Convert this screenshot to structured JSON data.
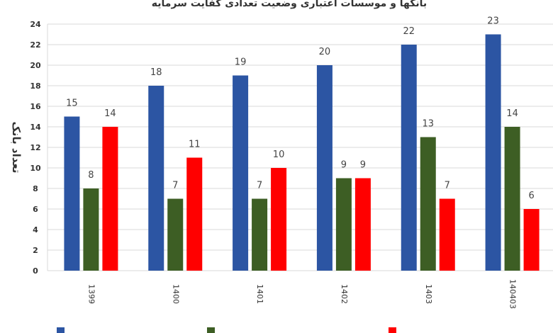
{
  "chart_data": {
    "type": "bar",
    "title": "بانکها و موسسات اعتباری وضعیت تعدادی کفایت سرمایه",
    "ylabel": "تعداد بانک",
    "xlabel": "",
    "categories": [
      "1399",
      "1400",
      "1401",
      "1402",
      "1403",
      "140403"
    ],
    "ylim": [
      0,
      24
    ],
    "yticks": [
      "0",
      "2",
      "4",
      "6",
      "8",
      "10",
      "12",
      "14",
      "16",
      "18",
      "20",
      "22",
      "24"
    ],
    "grid": true,
    "legend_position": "bottom",
    "series": [
      {
        "name": "",
        "color": "#2C55A3",
        "values": [
          15,
          18,
          19,
          20,
          22,
          23
        ]
      },
      {
        "name": "",
        "color": "#3D5E24",
        "values": [
          8,
          7,
          7,
          9,
          13,
          14
        ]
      },
      {
        "name": "",
        "color": "#FF0000",
        "values": [
          14,
          11,
          10,
          9,
          7,
          6
        ]
      }
    ]
  }
}
